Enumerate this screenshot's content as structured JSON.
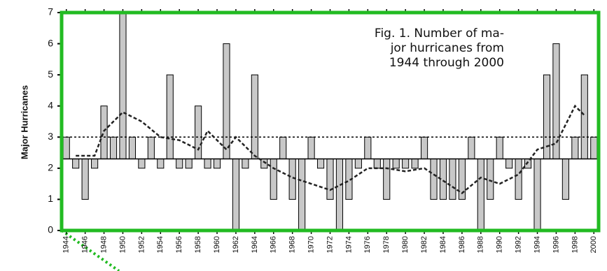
{
  "chart_data": {
    "type": "bar",
    "y_label": "Major Hurricanes",
    "annotation": [
      "Fig. 1. Number of ma-",
      "jor hurricanes from",
      "1944 through 2000"
    ],
    "x": [
      1944,
      1945,
      1946,
      1947,
      1948,
      1949,
      1950,
      1951,
      1952,
      1953,
      1954,
      1955,
      1956,
      1957,
      1958,
      1959,
      1960,
      1961,
      1962,
      1963,
      1964,
      1965,
      1966,
      1967,
      1968,
      1969,
      1970,
      1971,
      1972,
      1973,
      1974,
      1975,
      1976,
      1977,
      1978,
      1979,
      1980,
      1981,
      1982,
      1983,
      1984,
      1985,
      1986,
      1987,
      1988,
      1989,
      1990,
      1991,
      1992,
      1993,
      1994,
      1995,
      1996,
      1997,
      1998,
      1999,
      2000
    ],
    "values": [
      3,
      2,
      1,
      2,
      4,
      3,
      7,
      3,
      2,
      3,
      2,
      5,
      2,
      2,
      4,
      2,
      2,
      6,
      0,
      2,
      5,
      2,
      1,
      3,
      1,
      0,
      3,
      2,
      1,
      0,
      1,
      2,
      3,
      2,
      1,
      2,
      2,
      2,
      3,
      1,
      1,
      1,
      1,
      3,
      0,
      1,
      3,
      2,
      1,
      2,
      0,
      5,
      6,
      1,
      3,
      5,
      3
    ],
    "color": "#c8c8c8",
    "baseline": 2.3,
    "reference_line": 3,
    "smoothed": {
      "x": [
        1945,
        1947,
        1948,
        1950,
        1952,
        1954,
        1956,
        1958,
        1959,
        1961,
        1962,
        1964,
        1966,
        1968,
        1970,
        1972,
        1974,
        1976,
        1978,
        1980,
        1982,
        1984,
        1986,
        1988,
        1990,
        1992,
        1994,
        1996,
        1998,
        1999
      ],
      "values": [
        2.4,
        2.4,
        3.2,
        3.8,
        3.5,
        3.0,
        2.9,
        2.6,
        3.2,
        2.6,
        3.0,
        2.4,
        2.0,
        1.7,
        1.5,
        1.3,
        1.6,
        2.0,
        2.0,
        1.9,
        2.0,
        1.6,
        1.2,
        1.7,
        1.5,
        1.8,
        2.6,
        2.8,
        4.0,
        3.7
      ]
    },
    "xlim": [
      1943.5,
      2000.5
    ],
    "xticks": [
      1944,
      1946,
      1948,
      1950,
      1952,
      1954,
      1956,
      1958,
      1960,
      1962,
      1964,
      1966,
      1968,
      1970,
      1972,
      1974,
      1976,
      1978,
      1980,
      1982,
      1984,
      1986,
      1988,
      1990,
      1992,
      1994,
      1996,
      1998,
      2000
    ],
    "ylim": [
      0,
      7
    ],
    "yticks": [
      0,
      1,
      2,
      3,
      4,
      5,
      6,
      7
    ]
  }
}
